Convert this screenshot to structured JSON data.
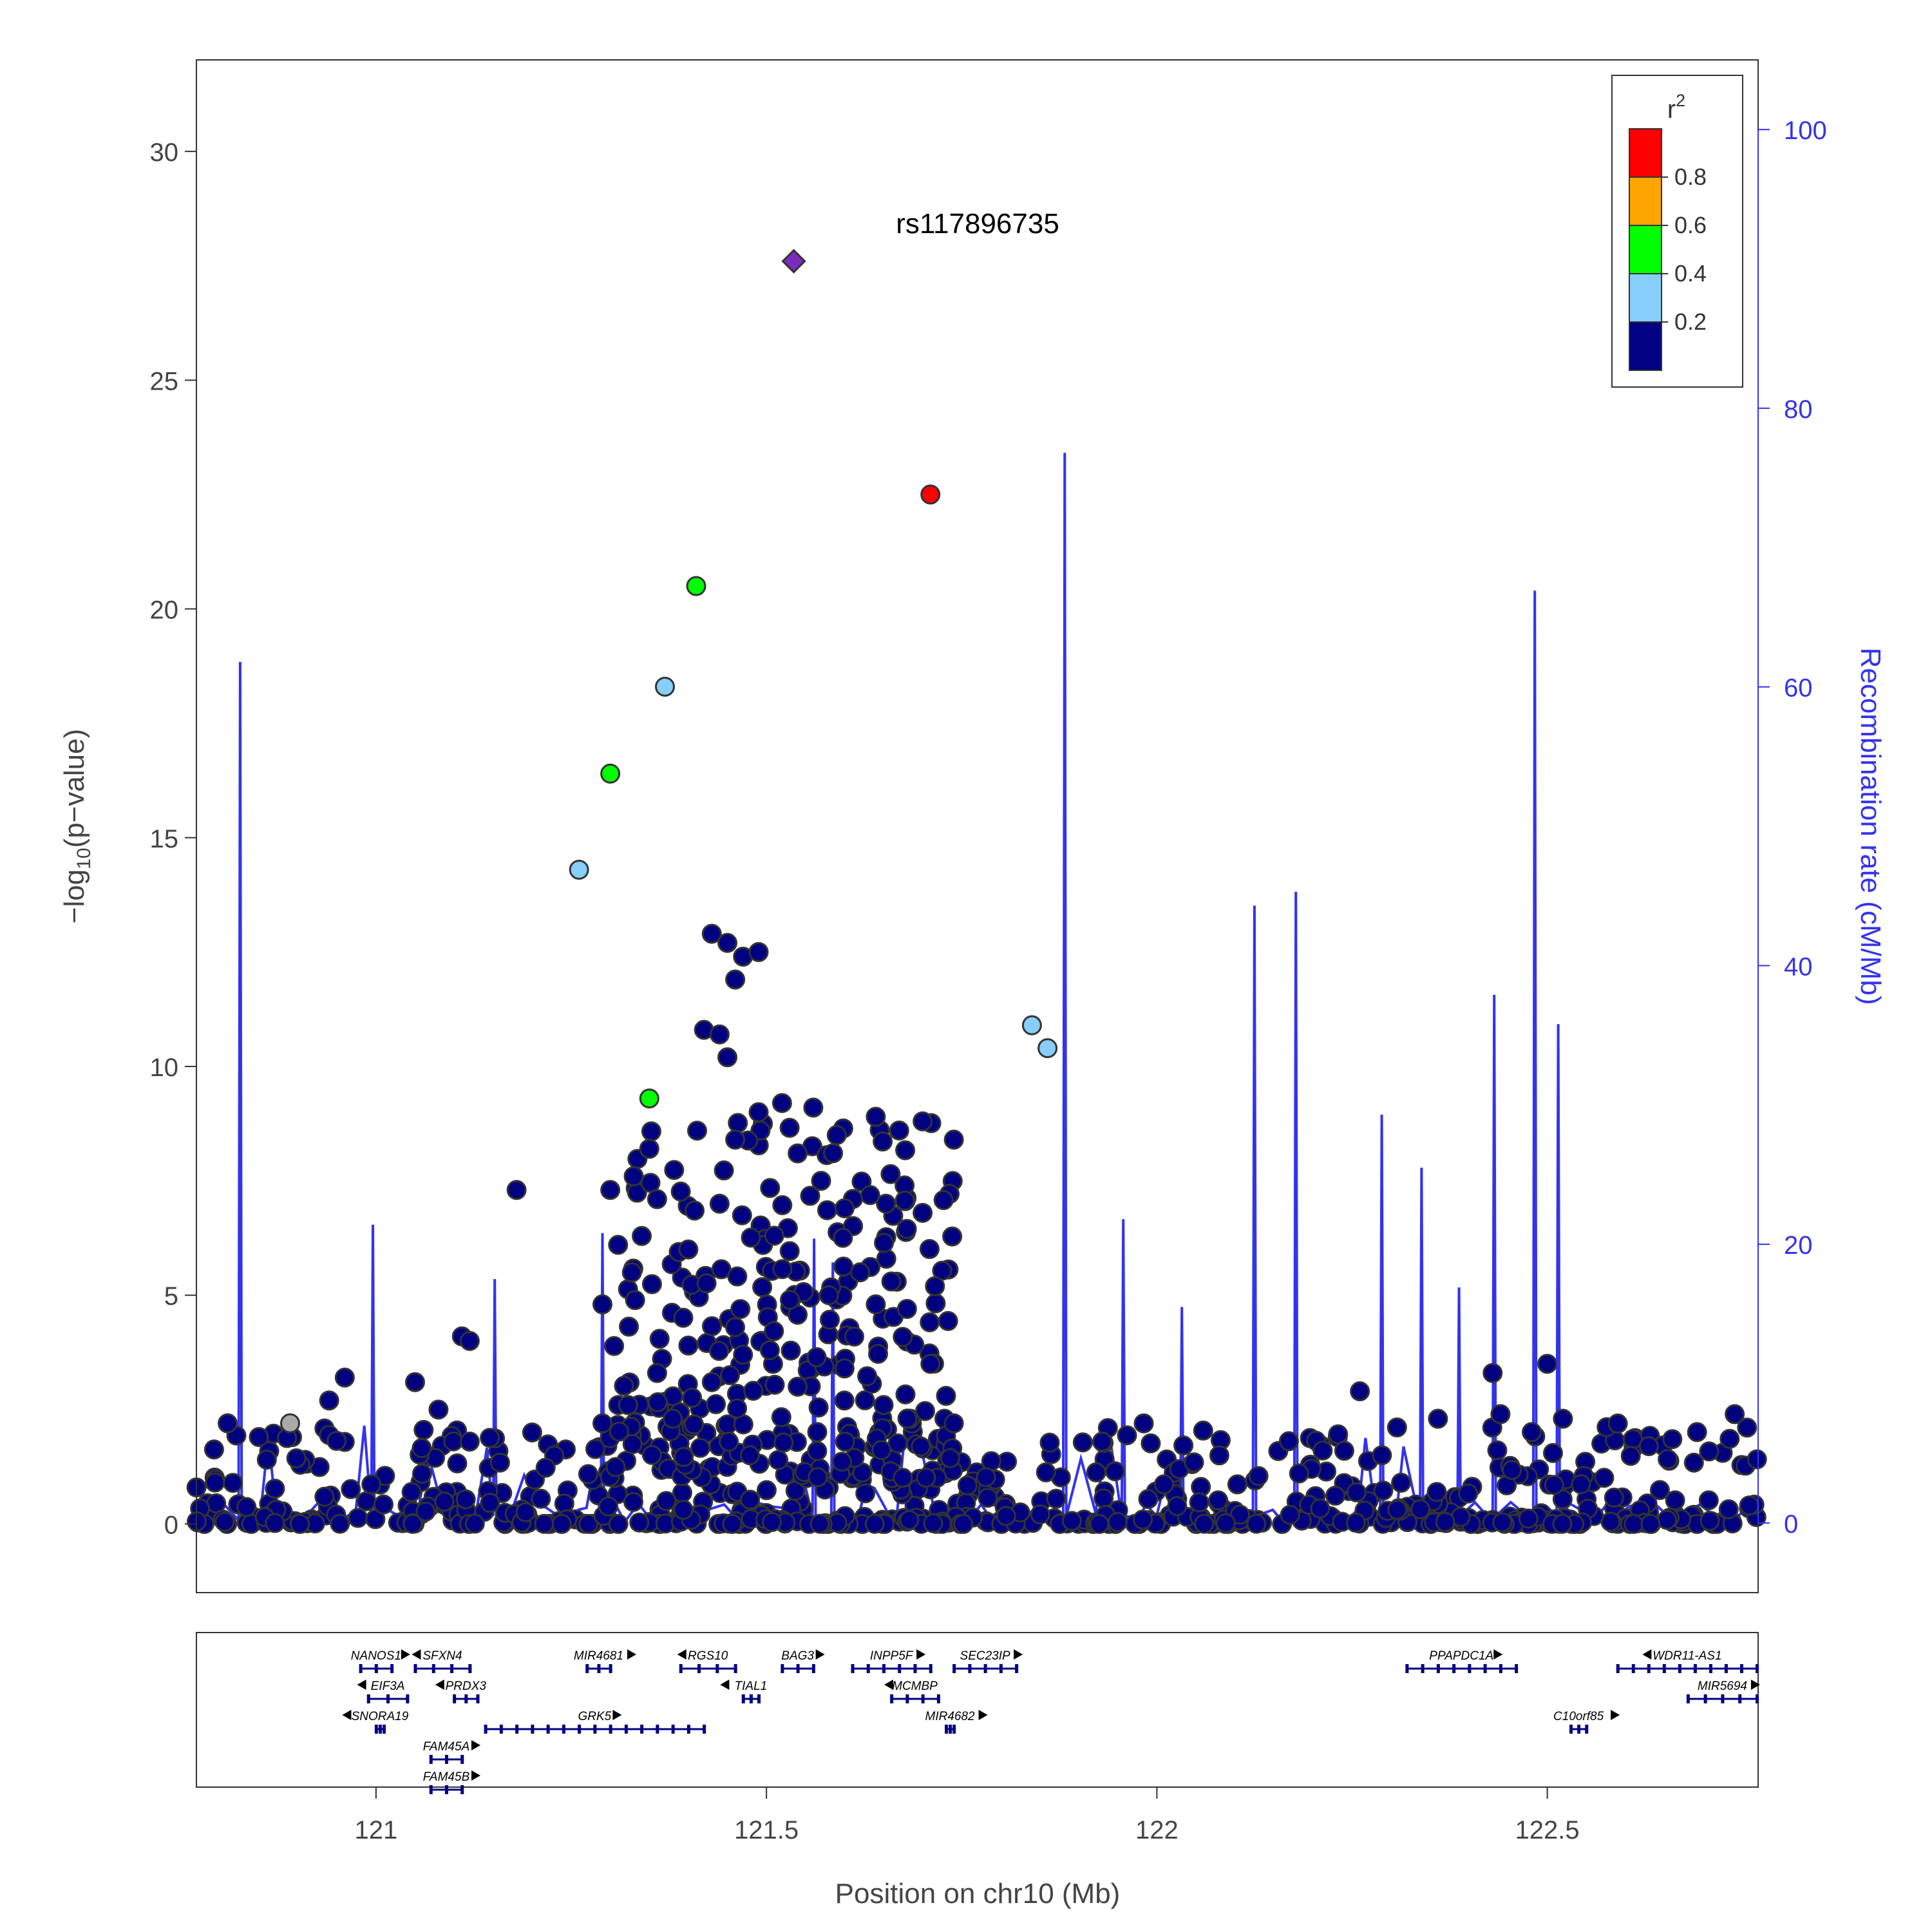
{
  "chart_data": {
    "type": "scatter",
    "x_axis": {
      "label": "Position on chr10 (Mb)",
      "range": [
        120.77,
        122.77
      ],
      "ticks": [
        121,
        121.5,
        122,
        122.5
      ],
      "tick_labels": [
        "121",
        "121.5",
        "122",
        "122.5"
      ]
    },
    "y_axis_left": {
      "label_text": "−log",
      "label_sub": "10",
      "label_tail": "(p−value)",
      "range": [
        -1.5,
        32
      ],
      "ticks": [
        0,
        5,
        10,
        15,
        20,
        25,
        30
      ],
      "tick_labels": [
        "0",
        "5",
        "10",
        "15",
        "20",
        "25",
        "30"
      ]
    },
    "y_axis_right": {
      "label": "Recombination rate (cM/Mb)",
      "range": [
        -5.0,
        105.0
      ],
      "ticks": [
        0,
        20,
        40,
        60,
        80,
        100
      ],
      "tick_labels": [
        "0",
        "20",
        "40",
        "60",
        "80",
        "100"
      ],
      "color": "#3333ee"
    },
    "legend": {
      "title": "r",
      "title_sup": "2",
      "placement": "top-right",
      "bins": [
        {
          "color": "#ff0000"
        },
        {
          "color": "#ffa500"
        },
        {
          "color": "#00ff00"
        },
        {
          "color": "#87cefa"
        },
        {
          "color": "#000080"
        }
      ],
      "labels": [
        "0.8",
        "0.6",
        "0.4",
        "0.2"
      ]
    },
    "lead_snp": {
      "name": "rs117896735",
      "x": 121.535,
      "y": 27.6,
      "color": "#7b2cbf"
    },
    "highlighted_points": [
      {
        "x": 121.71,
        "y": 22.5,
        "r2_color": "#ff0000"
      },
      {
        "x": 121.41,
        "y": 20.5,
        "r2_color": "#00ff00"
      },
      {
        "x": 121.37,
        "y": 18.3,
        "r2_color": "#87cefa"
      },
      {
        "x": 121.3,
        "y": 16.4,
        "r2_color": "#00ff00"
      },
      {
        "x": 121.26,
        "y": 14.3,
        "r2_color": "#87cefa"
      },
      {
        "x": 121.35,
        "y": 9.3,
        "r2_color": "#00ff00"
      },
      {
        "x": 121.84,
        "y": 10.9,
        "r2_color": "#87cefa"
      },
      {
        "x": 121.86,
        "y": 10.4,
        "r2_color": "#87cefa"
      },
      {
        "x": 120.89,
        "y": 2.2,
        "r2_color": "#aaaaaa"
      }
    ],
    "background_points": [
      [
        121.43,
        12.9
      ],
      [
        121.45,
        12.7
      ],
      [
        121.47,
        12.4
      ],
      [
        121.46,
        11.9
      ],
      [
        121.49,
        12.5
      ],
      [
        121.42,
        10.8
      ],
      [
        121.44,
        10.7
      ],
      [
        121.45,
        10.2
      ],
      [
        121.52,
        9.2
      ],
      [
        121.56,
        9.1
      ],
      [
        121.49,
        9.0
      ],
      [
        121.64,
        8.9
      ],
      [
        121.7,
        8.8
      ],
      [
        121.67,
        8.6
      ],
      [
        121.59,
        8.5
      ],
      [
        121.74,
        8.4
      ],
      [
        121.46,
        8.4
      ],
      [
        121.54,
        8.1
      ],
      [
        121.18,
        7.3
      ],
      [
        121.35,
        8.2
      ],
      [
        121.33,
        7.6
      ],
      [
        121.3,
        7.3
      ],
      [
        121.36,
        7.1
      ],
      [
        121.44,
        7.0
      ],
      [
        121.57,
        7.5
      ],
      [
        121.6,
        6.9
      ],
      [
        121.7,
        6.8
      ],
      [
        121.51,
        6.3
      ],
      [
        121.4,
        6.0
      ],
      [
        121.31,
        6.1
      ],
      [
        121.62,
        5.5
      ],
      [
        121.66,
        5.3
      ],
      [
        121.58,
        5.0
      ],
      [
        121.29,
        4.8
      ],
      [
        121.53,
        4.9
      ],
      [
        121.64,
        4.8
      ],
      [
        121.68,
        4.7
      ],
      [
        121.11,
        4.1
      ],
      [
        121.12,
        4.0
      ],
      [
        121.4,
        3.9
      ],
      [
        121.47,
        3.7
      ],
      [
        121.6,
        3.4
      ],
      [
        121.36,
        3.3
      ],
      [
        121.71,
        3.5
      ],
      [
        121.43,
        3.1
      ],
      [
        120.96,
        3.2
      ],
      [
        121.05,
        3.1
      ],
      [
        121.54,
        3.0
      ],
      [
        120.94,
        2.7
      ],
      [
        121.08,
        2.5
      ],
      [
        121.65,
        2.6
      ],
      [
        121.73,
        2.8
      ],
      [
        122.26,
        2.9
      ],
      [
        122.43,
        3.3
      ],
      [
        122.5,
        3.5
      ],
      [
        120.81,
        2.2
      ],
      [
        120.85,
        1.9
      ],
      [
        121.12,
        1.8
      ],
      [
        121.2,
        2.0
      ],
      [
        121.29,
        2.2
      ],
      [
        121.38,
        2.3
      ],
      [
        121.74,
        2.2
      ],
      [
        121.93,
        1.8
      ],
      [
        122.08,
        1.5
      ],
      [
        122.24,
        1.6
      ],
      [
        122.36,
        2.3
      ],
      [
        122.44,
        2.4
      ],
      [
        122.52,
        2.3
      ],
      [
        122.63,
        1.7
      ],
      [
        122.74,
        2.4
      ]
    ],
    "recombination_spikes": [
      [
        120.826,
        61.8
      ],
      [
        120.996,
        21.4
      ],
      [
        121.152,
        17.5
      ],
      [
        121.29,
        20.8
      ],
      [
        121.561,
        20.4
      ],
      [
        121.585,
        18.7
      ],
      [
        121.882,
        76.8
      ],
      [
        121.957,
        21.8
      ],
      [
        122.032,
        15.5
      ],
      [
        122.125,
        44.3
      ],
      [
        122.178,
        45.3
      ],
      [
        122.288,
        29.3
      ],
      [
        122.339,
        25.5
      ],
      [
        122.387,
        16.9
      ],
      [
        122.432,
        37.9
      ],
      [
        122.484,
        66.9
      ],
      [
        122.514,
        35.8
      ]
    ],
    "genes": [
      {
        "name": "NANOS1",
        "row": 0,
        "start": 120.98,
        "end": 121.02,
        "strand": "+"
      },
      {
        "name": "SFXN4",
        "row": 0,
        "start": 121.05,
        "end": 121.12,
        "strand": "-"
      },
      {
        "name": "MIR4681",
        "row": 0,
        "start": 121.27,
        "end": 121.3,
        "strand": "+"
      },
      {
        "name": "RGS10",
        "row": 0,
        "start": 121.39,
        "end": 121.46,
        "strand": "-"
      },
      {
        "name": "BAG3",
        "row": 0,
        "start": 121.52,
        "end": 121.56,
        "strand": "+"
      },
      {
        "name": "INPP5F",
        "row": 0,
        "start": 121.61,
        "end": 121.71,
        "strand": "+"
      },
      {
        "name": "SEC23IP",
        "row": 0,
        "start": 121.74,
        "end": 121.82,
        "strand": "+"
      },
      {
        "name": "PPAPDC1A",
        "row": 0,
        "start": 122.32,
        "end": 122.46,
        "strand": "+"
      },
      {
        "name": "WDR11-AS1",
        "row": 0,
        "start": 122.59,
        "end": 122.77,
        "strand": "-"
      },
      {
        "name": "EIF3A",
        "row": 1,
        "start": 120.99,
        "end": 121.04,
        "strand": "-"
      },
      {
        "name": "PRDX3",
        "row": 1,
        "start": 121.1,
        "end": 121.13,
        "strand": "-"
      },
      {
        "name": "TIAL1",
        "row": 1,
        "start": 121.47,
        "end": 121.49,
        "strand": "-"
      },
      {
        "name": "MCMBP",
        "row": 1,
        "start": 121.66,
        "end": 121.72,
        "strand": "-"
      },
      {
        "name": "MIR5694",
        "row": 1,
        "start": 122.68,
        "end": 122.77,
        "strand": "+"
      },
      {
        "name": "SNORA19",
        "row": 2,
        "start": 121.0,
        "end": 121.01,
        "strand": "-"
      },
      {
        "name": "GRK5",
        "row": 2,
        "start": 121.14,
        "end": 121.42,
        "strand": "+"
      },
      {
        "name": "MIR4682",
        "row": 2,
        "start": 121.73,
        "end": 121.74,
        "strand": "+"
      },
      {
        "name": "C10orf85",
        "row": 2,
        "start": 122.53,
        "end": 122.55,
        "strand": "+"
      },
      {
        "name": "FAM45A",
        "row": 3,
        "start": 121.07,
        "end": 121.11,
        "strand": "+"
      },
      {
        "name": "FAM45B",
        "row": 4,
        "start": 121.07,
        "end": 121.11,
        "strand": "+"
      }
    ]
  }
}
